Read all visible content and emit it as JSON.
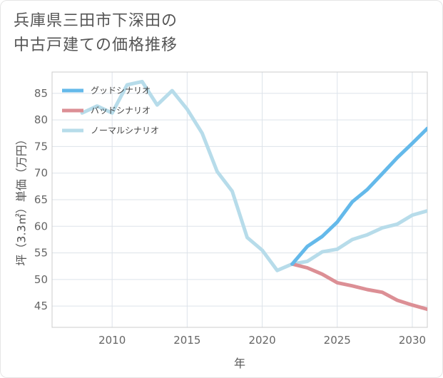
{
  "title_lines": [
    "兵庫県三田市下深田の",
    "中古戸建ての価格推移"
  ],
  "chart_data": {
    "type": "line",
    "title": "兵庫県三田市下深田の中古戸建ての価格推移",
    "xlabel": "年",
    "ylabel": "坪（3.3㎡）単価（万円）",
    "xlim": [
      2006,
      2031
    ],
    "ylim": [
      41,
      89
    ],
    "xticks": [
      2010,
      2015,
      2020,
      2025,
      2030
    ],
    "yticks": [
      45,
      50,
      55,
      60,
      65,
      70,
      75,
      80,
      85
    ],
    "grid": true,
    "legend_position": "top-left",
    "series": [
      {
        "name": "グッドシナリオ",
        "color": "#64b9ea",
        "x": [
          2022,
          2023,
          2024,
          2025,
          2026,
          2027,
          2028,
          2029,
          2030,
          2031
        ],
        "values": [
          52.9,
          56.2,
          58.1,
          60.8,
          64.6,
          66.9,
          69.9,
          72.9,
          75.6,
          78.4
        ]
      },
      {
        "name": "バッドシナリオ",
        "color": "#dc8f95",
        "x": [
          2022,
          2023,
          2024,
          2025,
          2026,
          2027,
          2028,
          2029,
          2030,
          2031
        ],
        "values": [
          52.9,
          52.2,
          51.0,
          49.4,
          48.8,
          48.1,
          47.6,
          46.1,
          45.2,
          44.4
        ]
      },
      {
        "name": "ノーマルシナリオ",
        "color": "#b7dcea",
        "x": [
          2008,
          2009,
          2010,
          2011,
          2012,
          2013,
          2014,
          2015,
          2016,
          2017,
          2018,
          2019,
          2020,
          2021,
          2022,
          2023,
          2024,
          2025,
          2026,
          2027,
          2028,
          2029,
          2030,
          2031
        ],
        "values": [
          81.3,
          82.6,
          81.3,
          86.6,
          87.2,
          82.8,
          85.5,
          82.0,
          77.5,
          70.3,
          66.6,
          57.9,
          55.5,
          51.7,
          52.9,
          53.4,
          55.2,
          55.7,
          57.5,
          58.4,
          59.7,
          60.4,
          62.1,
          62.9
        ]
      }
    ]
  }
}
